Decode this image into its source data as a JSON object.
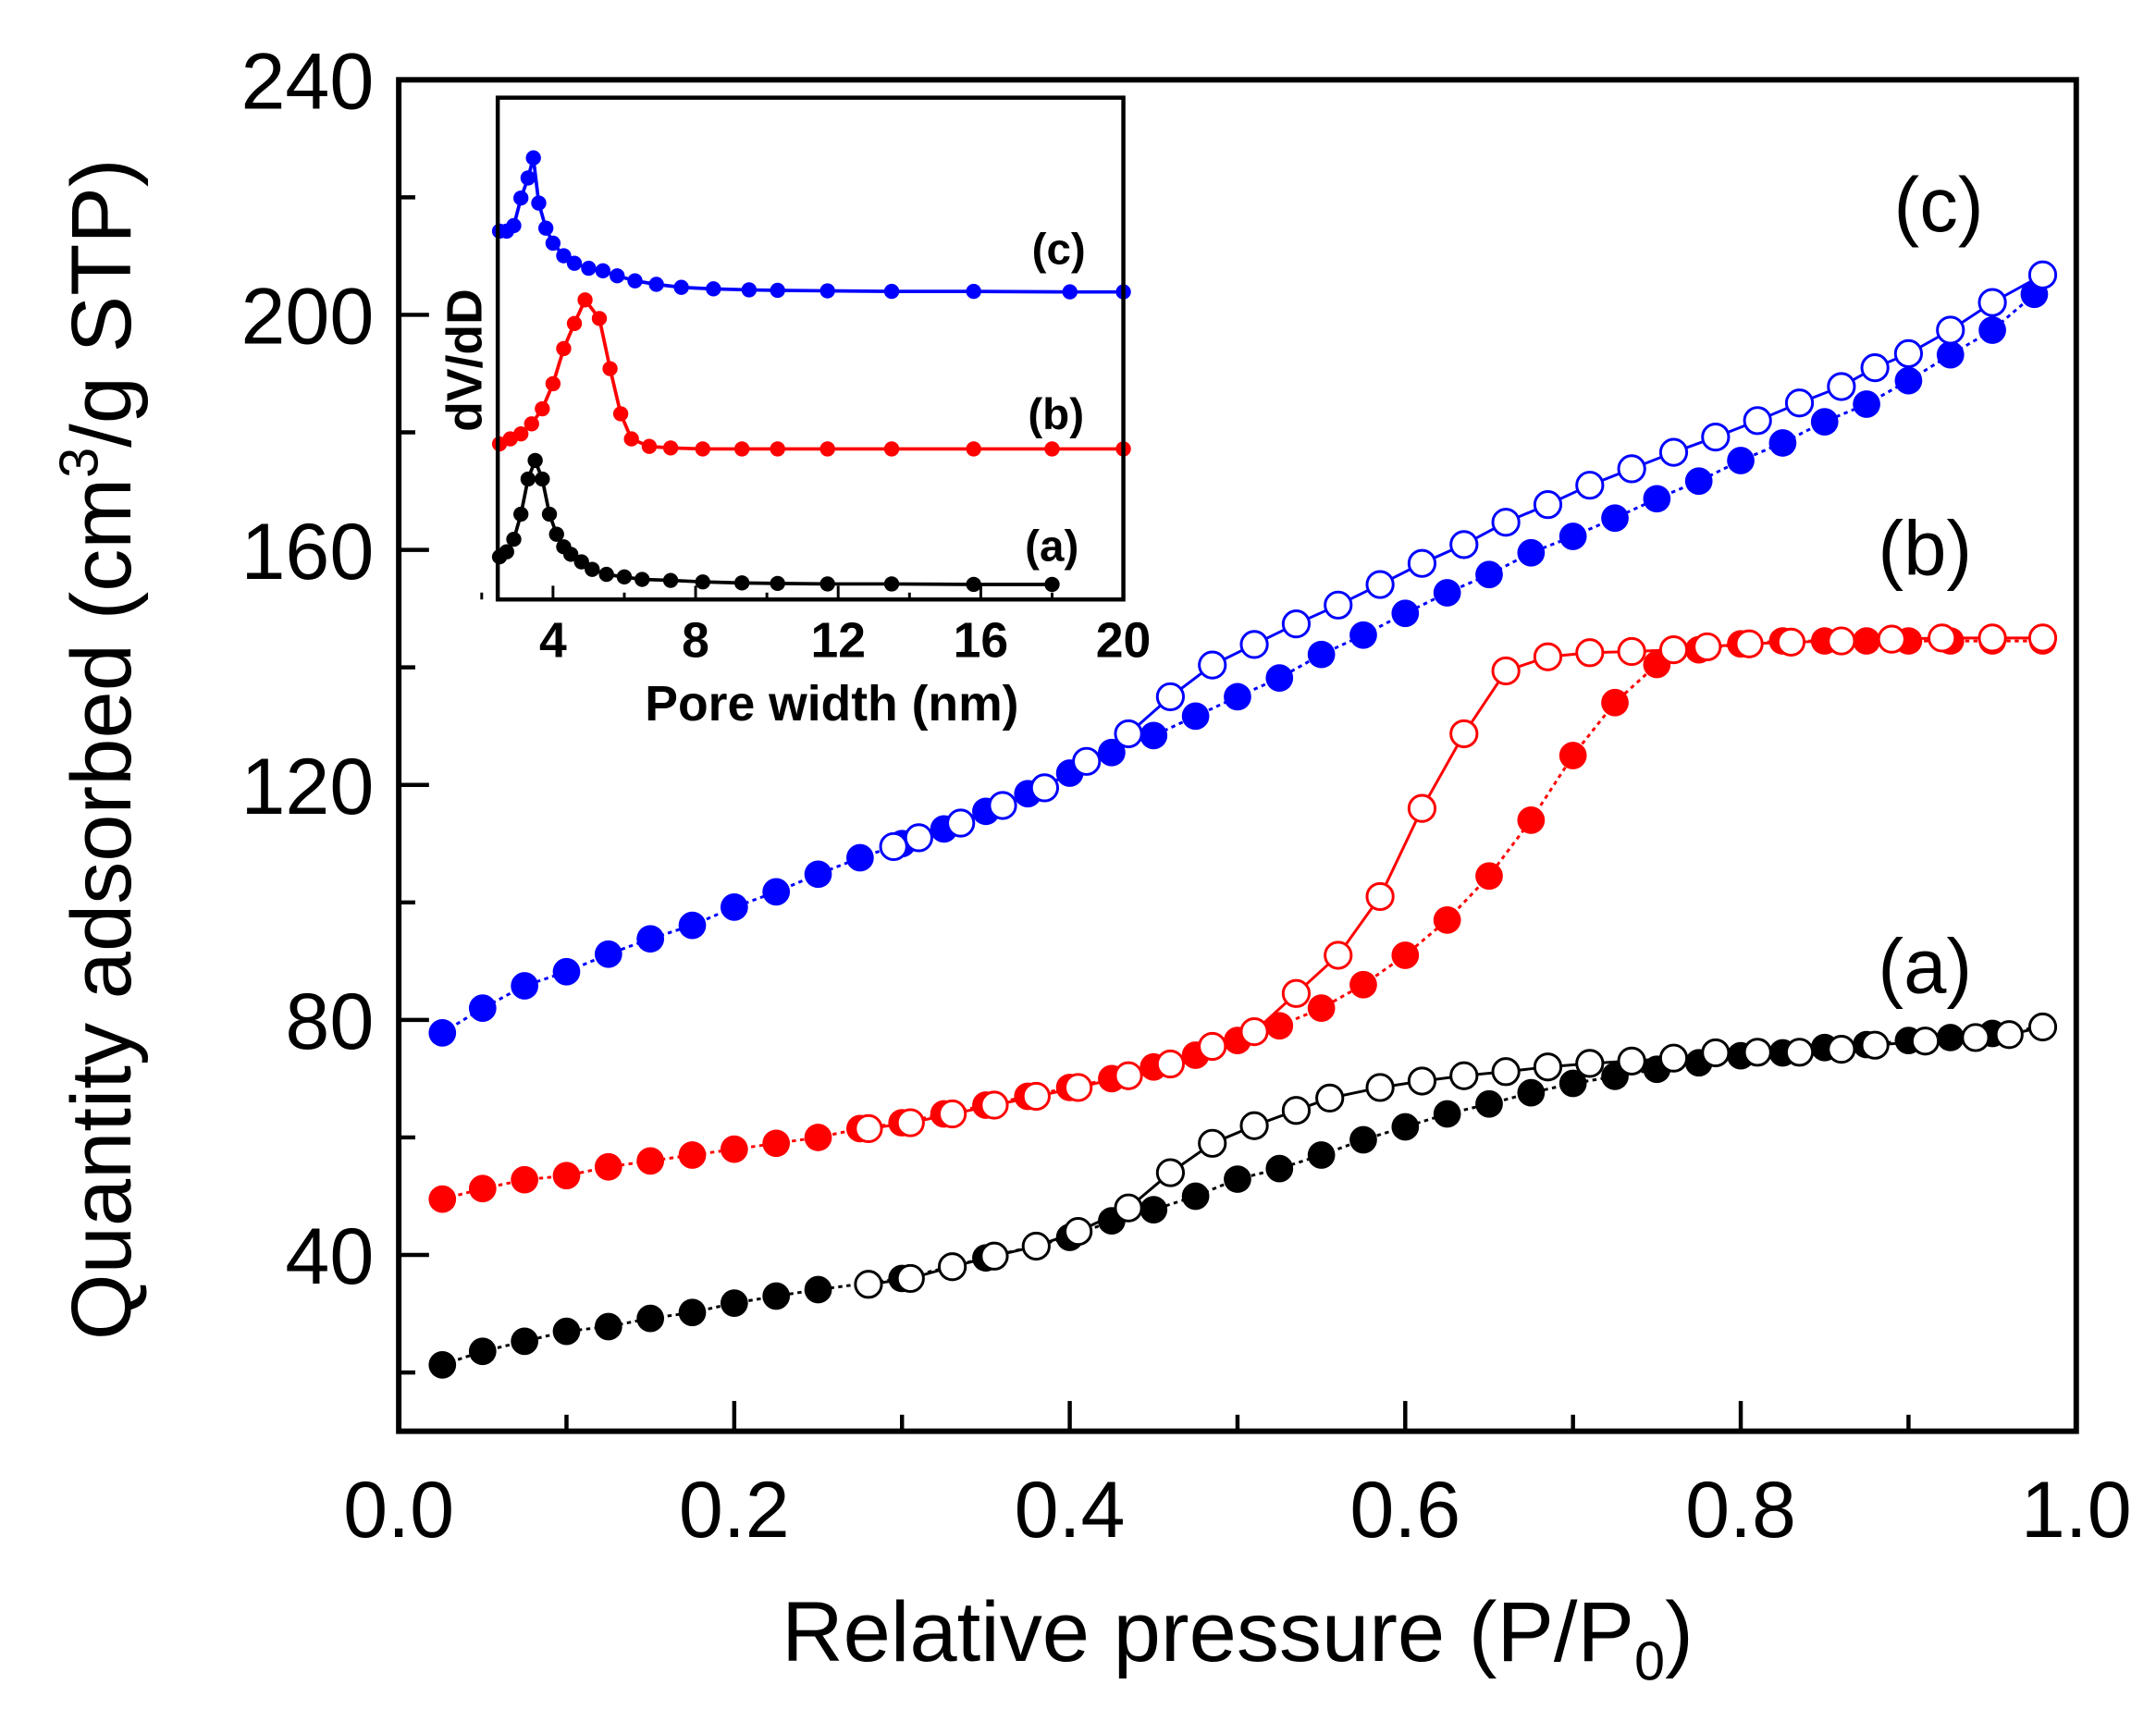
{
  "chart_data": [
    {
      "type": "scatter",
      "title": "",
      "xlabel": "Relative pressure (P/P",
      "xlabel_sub": "0",
      "xlabel_end": ")",
      "ylabel": "Quantity adsorbed (cm",
      "ylabel_sup": "3",
      "ylabel_end": "/g STP)",
      "xlim": [
        0,
        1.0
      ],
      "ylim": [
        10,
        240
      ],
      "xticks": [
        "0.0",
        "0.2",
        "0.4",
        "0.6",
        "0.8",
        "1.0"
      ],
      "yticks": [
        "40",
        "80",
        "120",
        "160",
        "200",
        "240"
      ],
      "grid": false,
      "colors": {
        "a": "#000000",
        "b": "#ff0000",
        "c": "#0000ff"
      },
      "series": [
        {
          "name": "(a)",
          "branch": "adsorption",
          "marker": "filled",
          "color": "#000000",
          "x": [
            0.026,
            0.05,
            0.075,
            0.1,
            0.125,
            0.15,
            0.175,
            0.2,
            0.225,
            0.25,
            0.3,
            0.35,
            0.4,
            0.425,
            0.45,
            0.475,
            0.5,
            0.525,
            0.55,
            0.575,
            0.6,
            0.625,
            0.65,
            0.675,
            0.7,
            0.725,
            0.75,
            0.775,
            0.8,
            0.825,
            0.85,
            0.875,
            0.9,
            0.925,
            0.95,
            0.98
          ],
          "y": [
            21.3,
            23.6,
            25.3,
            27,
            27.8,
            29.2,
            30.2,
            31.8,
            33,
            34.1,
            36,
            39.5,
            43,
            45.8,
            47.7,
            50,
            52.9,
            54.7,
            57,
            59.6,
            61.8,
            64,
            65.7,
            67.6,
            69.2,
            70.4,
            71.6,
            72.7,
            73.9,
            74.4,
            75.3,
            75.8,
            76.5,
            77,
            77.7,
            78.8
          ]
        },
        {
          "name": "(a)",
          "branch": "desorption",
          "marker": "open",
          "color": "#000000",
          "x": [
            0.98,
            0.96,
            0.94,
            0.91,
            0.88,
            0.86,
            0.835,
            0.81,
            0.785,
            0.76,
            0.735,
            0.71,
            0.685,
            0.66,
            0.635,
            0.61,
            0.585,
            0.555,
            0.535,
            0.51,
            0.485,
            0.46,
            0.435,
            0.405,
            0.38,
            0.355,
            0.33,
            0.305,
            0.28
          ],
          "y": [
            78.8,
            77.5,
            77,
            76.4,
            75.7,
            75,
            74.5,
            74.5,
            74.4,
            73.5,
            73,
            72.6,
            72,
            71.2,
            70.5,
            69.6,
            68.5,
            66.7,
            64.6,
            62,
            59,
            54,
            48,
            44,
            41.5,
            39.8,
            38,
            36,
            35
          ]
        },
        {
          "name": "(b)",
          "branch": "adsorption",
          "marker": "filled",
          "color": "#ff0000",
          "x": [
            0.026,
            0.05,
            0.075,
            0.1,
            0.125,
            0.15,
            0.175,
            0.2,
            0.225,
            0.25,
            0.275,
            0.3,
            0.325,
            0.35,
            0.375,
            0.4,
            0.425,
            0.45,
            0.475,
            0.5,
            0.525,
            0.55,
            0.575,
            0.6,
            0.625,
            0.65,
            0.675,
            0.7,
            0.725,
            0.75,
            0.775,
            0.8,
            0.825,
            0.85,
            0.875,
            0.9,
            0.925,
            0.95,
            0.98
          ],
          "y": [
            49.5,
            51.3,
            52.8,
            53.5,
            55,
            56,
            57,
            58,
            59,
            60,
            61.5,
            62.5,
            64,
            65.5,
            67,
            68.5,
            70,
            72,
            74,
            76.5,
            79,
            82,
            86,
            91,
            97,
            104.5,
            114,
            125,
            134,
            140.5,
            143,
            144,
            144.5,
            144.5,
            144.5,
            144.5,
            144.5,
            144.5,
            144.5
          ]
        },
        {
          "name": "(b)",
          "branch": "desorption",
          "marker": "open",
          "color": "#ff0000",
          "x": [
            0.98,
            0.95,
            0.92,
            0.89,
            0.86,
            0.83,
            0.805,
            0.78,
            0.76,
            0.735,
            0.71,
            0.685,
            0.66,
            0.635,
            0.61,
            0.585,
            0.56,
            0.535,
            0.51,
            0.485,
            0.46,
            0.435,
            0.405,
            0.38,
            0.355,
            0.33,
            0.305,
            0.28
          ],
          "y": [
            145,
            145,
            145,
            144.8,
            144.5,
            144.3,
            144,
            143.5,
            143,
            142.7,
            142.5,
            141.8,
            139.4,
            128.7,
            116,
            101,
            91,
            84.5,
            78,
            75.5,
            72.5,
            70.5,
            68.5,
            67,
            65.5,
            64,
            62.5,
            61.5
          ]
        },
        {
          "name": "(c)",
          "branch": "adsorption",
          "marker": "filled",
          "color": "#0000ff",
          "x": [
            0.026,
            0.05,
            0.075,
            0.1,
            0.125,
            0.15,
            0.175,
            0.2,
            0.225,
            0.25,
            0.275,
            0.3,
            0.325,
            0.35,
            0.375,
            0.4,
            0.425,
            0.45,
            0.475,
            0.5,
            0.525,
            0.55,
            0.575,
            0.6,
            0.625,
            0.65,
            0.675,
            0.7,
            0.725,
            0.75,
            0.775,
            0.8,
            0.825,
            0.85,
            0.875,
            0.9,
            0.925,
            0.95,
            0.975
          ],
          "y": [
            77.8,
            82,
            85.8,
            88.2,
            91.2,
            93.8,
            96.1,
            99.2,
            101.8,
            104.8,
            107.6,
            110,
            112.5,
            115.5,
            118.5,
            122,
            125.5,
            128.4,
            131.7,
            135,
            138.2,
            142.2,
            145.5,
            149.2,
            152.7,
            155.8,
            159.5,
            162.3,
            165.4,
            168.7,
            171.7,
            175.2,
            178.2,
            181.8,
            184.8,
            188.8,
            193.2,
            197.4,
            203.5
          ]
        },
        {
          "name": "(c)",
          "branch": "desorption",
          "marker": "open",
          "color": "#0000ff",
          "x": [
            0.98,
            0.95,
            0.925,
            0.9,
            0.88,
            0.86,
            0.835,
            0.81,
            0.785,
            0.76,
            0.735,
            0.71,
            0.685,
            0.66,
            0.635,
            0.61,
            0.585,
            0.56,
            0.535,
            0.51,
            0.485,
            0.46,
            0.435,
            0.41,
            0.385,
            0.36,
            0.335,
            0.31,
            0.295
          ],
          "y": [
            206.8,
            202.1,
            197.4,
            193.4,
            191,
            187.8,
            185,
            182,
            179.2,
            176.6,
            173.8,
            171,
            167.7,
            164.7,
            160.9,
            157.7,
            154.1,
            150.6,
            147.4,
            143.9,
            140.4,
            135,
            128.7,
            124,
            119.5,
            116.5,
            113.5,
            111,
            109.5
          ]
        }
      ],
      "annotations": [
        "(a)",
        "(b)",
        "(c)"
      ]
    },
    {
      "type": "line",
      "title": "inset",
      "xlabel": "Pore width (nm)",
      "ylabel": "dV/dD",
      "xlim": [
        2.45,
        20
      ],
      "ylim": [
        0,
        100
      ],
      "xticks": [
        "4",
        "8",
        "12",
        "16",
        "20"
      ],
      "series": [
        {
          "name": "(a)",
          "color": "#000000",
          "x": [
            2.5,
            2.7,
            2.9,
            3.1,
            3.3,
            3.5,
            3.7,
            3.9,
            4.1,
            4.3,
            4.5,
            4.8,
            5.1,
            5.5,
            6,
            6.5,
            7.3,
            8.2,
            9.3,
            10.3,
            11.7,
            13.5,
            15.8,
            18
          ],
          "y": [
            8.5,
            9.5,
            12,
            17,
            24,
            27.7,
            24,
            17,
            13,
            10.5,
            9,
            7.5,
            6,
            5,
            4.5,
            4,
            3.8,
            3.5,
            3.3,
            3.2,
            3.1,
            3.1,
            3,
            3
          ]
        },
        {
          "name": "(b)",
          "color": "#ff0000",
          "x": [
            2.5,
            2.8,
            3.1,
            3.4,
            3.7,
            4.0,
            4.3,
            4.6,
            4.9,
            5.3,
            5.6,
            5.9,
            6.2,
            6.7,
            7.3,
            8.2,
            9.3,
            10.3,
            11.7,
            13.5,
            15.8,
            18,
            20
          ],
          "y": [
            31,
            32,
            33,
            35,
            38,
            43,
            50,
            55,
            59.7,
            56,
            46,
            37,
            32,
            30.5,
            30.2,
            30,
            30,
            30,
            30,
            30,
            30,
            30,
            30
          ]
        },
        {
          "name": "(c)",
          "color": "#0000ff",
          "x": [
            2.5,
            2.7,
            2.9,
            3.1,
            3.3,
            3.45,
            3.6,
            3.8,
            4.0,
            4.3,
            4.6,
            5.0,
            5.4,
            5.8,
            6.3,
            6.9,
            7.6,
            8.5,
            9.5,
            10.3,
            11.7,
            13.5,
            15.8,
            18.5,
            20
          ],
          "y": [
            73.4,
            73.4,
            74.5,
            80,
            84,
            88,
            79,
            74,
            71,
            68.5,
            67,
            66,
            65.5,
            64.5,
            63.5,
            62.8,
            62.2,
            61.9,
            61.7,
            61.6,
            61.5,
            61.4,
            61.4,
            61.3,
            61.3
          ]
        }
      ],
      "annotations": [
        "(a)",
        "(b)",
        "(c)"
      ]
    }
  ]
}
